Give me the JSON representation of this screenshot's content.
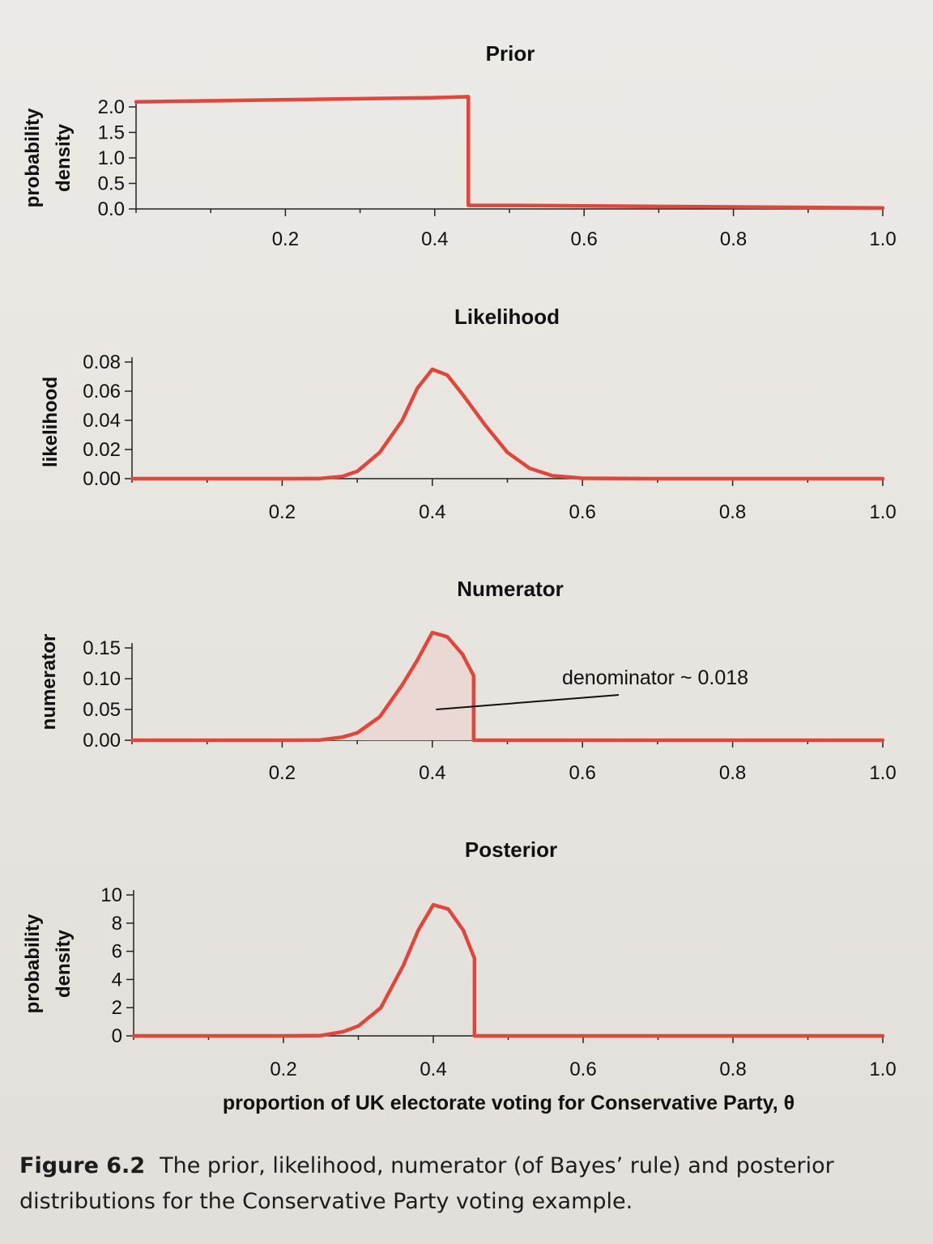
{
  "chart_data": [
    {
      "type": "line",
      "title": "Prior",
      "ylabel": [
        "probability",
        "density"
      ],
      "ylim": [
        0,
        2.0
      ],
      "xlim": [
        0,
        1.0
      ],
      "y_ticks": [
        "0.0",
        "0.5",
        "1.0",
        "1.5",
        "2.0"
      ],
      "x_ticks": [
        "0.2",
        "0.4",
        "0.6",
        "0.8",
        "1.0"
      ],
      "color": "#e0473a",
      "x": [
        0.0,
        0.1,
        0.2,
        0.3,
        0.4,
        0.445,
        0.445,
        0.5,
        0.6,
        0.7,
        0.8,
        0.9,
        1.0
      ],
      "y": [
        2.1,
        2.12,
        2.14,
        2.16,
        2.18,
        2.2,
        0.07,
        0.07,
        0.06,
        0.05,
        0.04,
        0.03,
        0.02
      ]
    },
    {
      "type": "line",
      "title": "Likelihood",
      "ylabel": [
        "likelihood"
      ],
      "ylim": [
        0,
        0.08
      ],
      "xlim": [
        0,
        1.0
      ],
      "y_ticks": [
        "0.00",
        "0.02",
        "0.04",
        "0.06",
        "0.08"
      ],
      "x_ticks": [
        "0.2",
        "0.4",
        "0.6",
        "0.8",
        "1.0"
      ],
      "color": "#e0473a",
      "x": [
        0.0,
        0.1,
        0.2,
        0.25,
        0.28,
        0.3,
        0.33,
        0.36,
        0.38,
        0.4,
        0.42,
        0.44,
        0.47,
        0.5,
        0.53,
        0.56,
        0.6,
        0.7,
        0.8,
        0.9,
        1.0
      ],
      "y": [
        0,
        0,
        0,
        0.0001,
        0.0015,
        0.005,
        0.018,
        0.04,
        0.062,
        0.075,
        0.071,
        0.058,
        0.037,
        0.018,
        0.007,
        0.002,
        0.0003,
        0,
        0,
        0,
        0
      ]
    },
    {
      "type": "area",
      "title": "Numerator",
      "ylabel": [
        "numerator"
      ],
      "ylim": [
        0,
        0.15
      ],
      "xlim": [
        0,
        1.0
      ],
      "y_ticks": [
        "0.00",
        "0.05",
        "0.10",
        "0.15"
      ],
      "x_ticks": [
        "0.2",
        "0.4",
        "0.6",
        "0.8",
        "1.0"
      ],
      "color": "#e0473a",
      "fill_color": "#ead8d4",
      "annotation": "denominator ~ 0.018",
      "x": [
        0.0,
        0.1,
        0.2,
        0.25,
        0.28,
        0.3,
        0.33,
        0.36,
        0.38,
        0.4,
        0.42,
        0.44,
        0.455,
        0.455,
        0.5,
        0.6,
        0.7,
        0.8,
        0.9,
        1.0
      ],
      "y": [
        0,
        0,
        0,
        0.0003,
        0.005,
        0.012,
        0.038,
        0.09,
        0.13,
        0.175,
        0.168,
        0.14,
        0.105,
        0,
        0,
        0,
        0,
        0,
        0,
        0
      ]
    },
    {
      "type": "line",
      "title": "Posterior",
      "ylabel": [
        "probability",
        "density"
      ],
      "ylim": [
        0,
        10
      ],
      "xlim": [
        0,
        1.0
      ],
      "y_ticks": [
        "0",
        "2",
        "4",
        "6",
        "8",
        "10"
      ],
      "x_ticks": [
        "0.2",
        "0.4",
        "0.6",
        "0.8",
        "1.0"
      ],
      "xlabel": "proportion of UK electorate voting for Conservative Party, θ",
      "color": "#e0473a",
      "x": [
        0.0,
        0.1,
        0.2,
        0.25,
        0.28,
        0.3,
        0.33,
        0.36,
        0.38,
        0.4,
        0.42,
        0.44,
        0.455,
        0.455,
        0.5,
        0.6,
        0.7,
        0.8,
        0.9,
        1.0
      ],
      "y": [
        0,
        0,
        0,
        0.02,
        0.3,
        0.7,
        2.0,
        5.0,
        7.5,
        9.3,
        9.0,
        7.5,
        5.5,
        0,
        0,
        0,
        0,
        0,
        0,
        0
      ]
    }
  ],
  "caption": {
    "figure_no": "Figure 6.2",
    "text": "The prior, likelihood, numerator (of Bayes’ rule) and posterior distributions for the Conservative Party voting example."
  }
}
